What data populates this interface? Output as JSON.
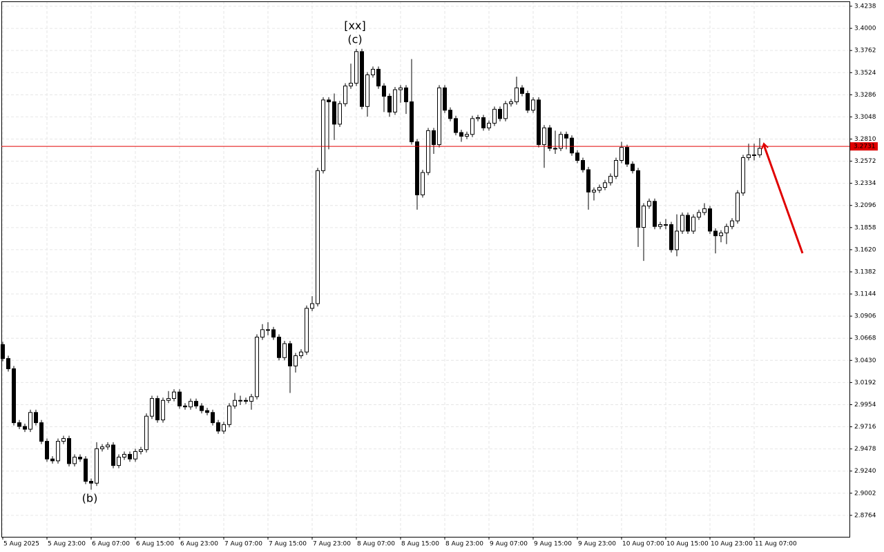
{
  "chart_data": {
    "type": "candlestick",
    "categories": [
      "5 Aug 2025",
      null,
      null,
      null,
      null,
      null,
      null,
      null,
      "5 Aug 23:00",
      null,
      null,
      null,
      null,
      null,
      null,
      null,
      "6 Aug 07:00",
      null,
      null,
      null,
      null,
      null,
      null,
      null,
      "6 Aug 15:00",
      null,
      null,
      null,
      null,
      null,
      null,
      null,
      "6 Aug 23:00",
      null,
      null,
      null,
      null,
      null,
      null,
      null,
      "7 Aug 07:00",
      null,
      null,
      null,
      null,
      null,
      null,
      null,
      "7 Aug 15:00",
      null,
      null,
      null,
      null,
      null,
      null,
      null,
      "7 Aug 23:00",
      null,
      null,
      null,
      null,
      null,
      null,
      null,
      "8 Aug 07:00",
      null,
      null,
      null,
      null,
      null,
      null,
      null,
      "8 Aug 15:00",
      null,
      null,
      null,
      null,
      null,
      null,
      null,
      "8 Aug 23:00",
      null,
      null,
      null,
      null,
      null,
      null,
      null,
      "9 Aug 07:00",
      null,
      null,
      null,
      null,
      null,
      null,
      null,
      "9 Aug 15:00",
      null,
      null,
      null,
      null,
      null,
      null,
      null,
      "9 Aug 23:00",
      null,
      null,
      null,
      null,
      null,
      null,
      null,
      "10 Aug 07:00",
      null,
      null,
      null,
      null,
      null,
      null,
      null,
      "10 Aug 15:00",
      null,
      null,
      null,
      null,
      null,
      null,
      null,
      "10 Aug 23:00",
      null,
      null,
      null,
      null,
      null,
      null,
      null,
      "11 Aug 07:00",
      null
    ],
    "open": [
      3.06,
      3.045,
      3.034,
      2.976,
      2.972,
      2.969,
      2.987,
      2.976,
      2.956,
      2.937,
      2.935,
      2.956,
      2.959,
      2.932,
      2.939,
      2.937,
      2.913,
      2.911,
      2.948,
      2.95,
      2.952,
      2.93,
      2.939,
      2.942,
      2.937,
      2.945,
      2.947,
      2.983,
      3.002,
      2.979,
      3.0,
      3.002,
      3.009,
      2.994,
      2.993,
      2.999,
      2.994,
      2.989,
      2.987,
      2.976,
      2.967,
      2.974,
      2.994,
      3.0,
      3.0,
      2.999,
      3.004,
      3.068,
      3.076,
      3.076,
      3.068,
      3.046,
      3.061,
      3.037,
      3.048,
      3.052,
      3.099,
      3.104,
      3.247,
      3.323,
      3.321,
      3.297,
      3.319,
      3.338,
      3.341,
      3.375,
      3.316,
      3.35,
      3.356,
      3.338,
      3.327,
      3.31,
      3.334,
      3.336,
      3.321,
      3.278,
      3.221,
      3.245,
      3.29,
      3.275,
      3.336,
      3.312,
      3.303,
      3.288,
      3.284,
      3.286,
      3.303,
      3.304,
      3.293,
      3.298,
      3.313,
      3.303,
      3.319,
      3.321,
      3.336,
      3.33,
      3.312,
      3.323,
      3.275,
      3.293,
      3.271,
      3.271,
      3.286,
      3.282,
      3.266,
      3.258,
      3.248,
      3.224,
      3.226,
      3.229,
      3.234,
      3.241,
      3.258,
      3.272,
      3.254,
      3.247,
      3.186,
      3.209,
      3.214,
      3.187,
      3.189,
      3.189,
      3.162,
      3.182,
      3.199,
      3.182,
      3.197,
      3.202,
      3.206,
      3.182,
      3.177,
      3.18,
      3.187,
      3.193,
      3.223,
      3.261,
      3.264,
      3.264
    ],
    "high": [
      3.063,
      3.048,
      3.037,
      2.979,
      2.975,
      2.99,
      2.99,
      2.979,
      2.959,
      2.94,
      2.959,
      2.962,
      2.962,
      2.942,
      2.942,
      2.94,
      2.916,
      2.955,
      2.953,
      2.955,
      2.955,
      2.942,
      2.945,
      2.945,
      2.948,
      2.95,
      2.986,
      3.005,
      3.005,
      3.003,
      3.01,
      3.012,
      3.012,
      2.997,
      3.002,
      3.002,
      2.997,
      2.992,
      2.99,
      2.979,
      2.977,
      2.997,
      3.008,
      3.005,
      3.003,
      3.007,
      3.071,
      3.082,
      3.084,
      3.079,
      3.071,
      3.064,
      3.064,
      3.051,
      3.055,
      3.102,
      3.112,
      3.25,
      3.326,
      3.326,
      3.33,
      3.322,
      3.341,
      3.362,
      3.378,
      3.378,
      3.353,
      3.359,
      3.359,
      3.341,
      3.33,
      3.337,
      3.339,
      3.339,
      3.367,
      3.281,
      3.248,
      3.293,
      3.293,
      3.339,
      3.339,
      3.315,
      3.306,
      3.291,
      3.289,
      3.306,
      3.307,
      3.307,
      3.301,
      3.316,
      3.316,
      3.322,
      3.324,
      3.348,
      3.339,
      3.333,
      3.326,
      3.326,
      3.296,
      3.296,
      3.29,
      3.289,
      3.289,
      3.285,
      3.269,
      3.261,
      3.251,
      3.229,
      3.232,
      3.237,
      3.244,
      3.261,
      3.278,
      3.275,
      3.257,
      3.25,
      3.212,
      3.217,
      3.217,
      3.192,
      3.195,
      3.192,
      3.2,
      3.202,
      3.202,
      3.2,
      3.205,
      3.212,
      3.209,
      3.185,
      3.183,
      3.19,
      3.196,
      3.226,
      3.264,
      3.276,
      3.276,
      3.282
    ],
    "low": [
      3.042,
      3.031,
      2.973,
      2.969,
      2.966,
      2.966,
      2.973,
      2.953,
      2.934,
      2.932,
      2.932,
      2.953,
      2.929,
      2.929,
      2.934,
      2.91,
      2.904,
      2.908,
      2.945,
      2.947,
      2.927,
      2.927,
      2.936,
      2.934,
      2.934,
      2.942,
      2.944,
      2.98,
      2.976,
      2.976,
      2.997,
      2.999,
      2.991,
      2.99,
      2.99,
      2.991,
      2.986,
      2.984,
      2.973,
      2.964,
      2.964,
      2.971,
      2.991,
      2.995,
      2.996,
      2.99,
      3.001,
      3.065,
      3.07,
      3.065,
      3.043,
      3.043,
      3.008,
      3.03,
      3.045,
      3.049,
      3.096,
      3.101,
      3.244,
      3.27,
      3.28,
      3.294,
      3.316,
      3.335,
      3.338,
      3.313,
      3.305,
      3.347,
      3.335,
      3.31,
      3.305,
      3.307,
      3.32,
      3.308,
      3.275,
      3.205,
      3.218,
      3.242,
      3.265,
      3.272,
      3.309,
      3.3,
      3.285,
      3.278,
      3.281,
      3.283,
      3.3,
      3.29,
      3.29,
      3.295,
      3.3,
      3.3,
      3.316,
      3.318,
      3.327,
      3.309,
      3.309,
      3.272,
      3.25,
      3.268,
      3.265,
      3.268,
      3.27,
      3.263,
      3.255,
      3.245,
      3.205,
      3.215,
      3.223,
      3.226,
      3.231,
      3.238,
      3.255,
      3.251,
      3.244,
      3.165,
      3.15,
      3.206,
      3.184,
      3.184,
      3.184,
      3.159,
      3.155,
      3.179,
      3.179,
      3.179,
      3.194,
      3.199,
      3.179,
      3.158,
      3.17,
      3.168,
      3.184,
      3.19,
      3.22,
      3.258,
      3.258,
      3.261
    ],
    "close": [
      3.045,
      3.034,
      2.976,
      2.972,
      2.969,
      2.987,
      2.976,
      2.956,
      2.937,
      2.935,
      2.956,
      2.959,
      2.932,
      2.939,
      2.937,
      2.913,
      2.911,
      2.948,
      2.95,
      2.952,
      2.93,
      2.939,
      2.942,
      2.937,
      2.945,
      2.947,
      2.983,
      3.002,
      2.979,
      3.0,
      3.002,
      3.009,
      2.994,
      2.993,
      2.999,
      2.994,
      2.989,
      2.987,
      2.976,
      2.967,
      2.974,
      2.994,
      3.0,
      3.0,
      2.999,
      3.004,
      3.068,
      3.076,
      3.076,
      3.068,
      3.046,
      3.061,
      3.037,
      3.048,
      3.052,
      3.099,
      3.104,
      3.247,
      3.323,
      3.321,
      3.297,
      3.319,
      3.338,
      3.341,
      3.375,
      3.316,
      3.35,
      3.356,
      3.338,
      3.327,
      3.31,
      3.334,
      3.336,
      3.321,
      3.278,
      3.221,
      3.245,
      3.29,
      3.275,
      3.336,
      3.312,
      3.303,
      3.288,
      3.284,
      3.286,
      3.303,
      3.304,
      3.293,
      3.298,
      3.313,
      3.303,
      3.319,
      3.321,
      3.336,
      3.33,
      3.312,
      3.323,
      3.275,
      3.293,
      3.271,
      3.271,
      3.286,
      3.282,
      3.266,
      3.258,
      3.248,
      3.224,
      3.226,
      3.229,
      3.234,
      3.241,
      3.258,
      3.272,
      3.254,
      3.247,
      3.186,
      3.209,
      3.214,
      3.187,
      3.189,
      3.189,
      3.162,
      3.182,
      3.199,
      3.182,
      3.197,
      3.202,
      3.206,
      3.182,
      3.177,
      3.18,
      3.187,
      3.193,
      3.223,
      3.261,
      3.264,
      3.264,
      3.271
    ],
    "up_color": "#ffffff",
    "down_color": "#000000",
    "ylim": [
      2.8533,
      3.429
    ],
    "yticks": [
      {
        "value": 3.4238,
        "label": "3.4238"
      },
      {
        "value": 3.4,
        "label": "3.4000"
      },
      {
        "value": 3.3762,
        "label": "3.3762"
      },
      {
        "value": 3.3524,
        "label": "3.3524"
      },
      {
        "value": 3.3286,
        "label": "3.3286"
      },
      {
        "value": 3.3048,
        "label": "3.3048"
      },
      {
        "value": 3.281,
        "label": "3.2810"
      },
      {
        "value": 3.2572,
        "label": "3.2572"
      },
      {
        "value": 3.2334,
        "label": "3.2334"
      },
      {
        "value": 3.2096,
        "label": "3.2096"
      },
      {
        "value": 3.1858,
        "label": "3.1858"
      },
      {
        "value": 3.162,
        "label": "3.1620"
      },
      {
        "value": 3.1382,
        "label": "3.1382"
      },
      {
        "value": 3.1144,
        "label": "3.1144"
      },
      {
        "value": 3.0906,
        "label": "3.0906"
      },
      {
        "value": 3.0668,
        "label": "3.0668"
      },
      {
        "value": 3.043,
        "label": "3.0430"
      },
      {
        "value": 3.0192,
        "label": "3.0192"
      },
      {
        "value": 2.9954,
        "label": "2.9954"
      },
      {
        "value": 2.9716,
        "label": "2.9716"
      },
      {
        "value": 2.9478,
        "label": "2.9478"
      },
      {
        "value": 2.924,
        "label": "2.9240"
      },
      {
        "value": 2.9002,
        "label": "2.9002"
      },
      {
        "value": 2.8764,
        "label": "2.8764"
      }
    ],
    "grid": true,
    "current_price": 3.2731,
    "current_price_color": "#e00000",
    "annotations": [
      {
        "text": "[xx]",
        "color": "#3cb43c"
      },
      {
        "text": "(c)",
        "color": "#2a2ad4"
      },
      {
        "text": "(b)",
        "color": "#2a2ad4"
      }
    ]
  }
}
